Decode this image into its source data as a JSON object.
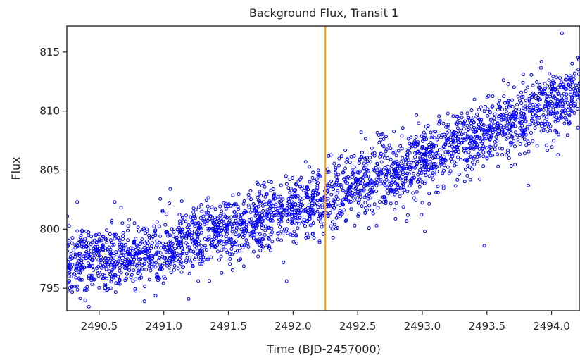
{
  "chart_data": {
    "type": "scatter",
    "title": "Background Flux, Transit 1",
    "xlabel": "Time (BJD-2457000)",
    "ylabel": "Flux",
    "xlim": [
      2490.25,
      2494.22
    ],
    "ylim": [
      793.1,
      817.2
    ],
    "xticks": [
      "2490.5",
      "2491.0",
      "2491.5",
      "2492.0",
      "2492.5",
      "2493.0",
      "2493.5",
      "2494.0"
    ],
    "yticks": [
      "795",
      "800",
      "805",
      "810",
      "815"
    ],
    "grid": false,
    "marker_color": "#0000ff",
    "transit_line": {
      "x": 2492.25,
      "color": "#ff9900"
    },
    "trend": {
      "x": [
        2490.25,
        2490.8,
        2491.5,
        2492.25,
        2493.0,
        2493.6,
        2494.22
      ],
      "y": [
        797.3,
        797.6,
        799.8,
        802.6,
        805.9,
        808.6,
        811.6
      ]
    },
    "scatter_sigma": 1.4,
    "n_points": 2700,
    "outliers": [
      [
        2490.33,
        802.3
      ],
      [
        2490.62,
        802.3
      ],
      [
        2491.05,
        803.4
      ],
      [
        2492.7,
        806.3
      ],
      [
        2492.95,
        805.3
      ],
      [
        2493.02,
        799.8
      ],
      [
        2493.48,
        798.6
      ],
      [
        2493.82,
        803.7
      ],
      [
        2494.08,
        816.6
      ],
      [
        2494.05,
        806.3
      ],
      [
        2491.95,
        795.6
      ],
      [
        2490.85,
        793.9
      ],
      [
        2492.88,
        800.7
      ],
      [
        2493.35,
        807.9
      ]
    ]
  }
}
